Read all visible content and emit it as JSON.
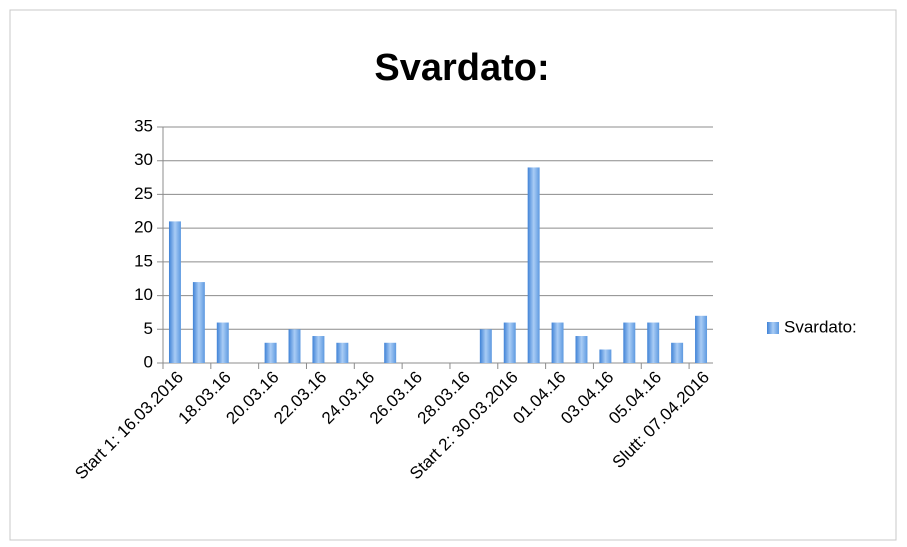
{
  "chart_data": {
    "type": "bar",
    "title": "Svardato:",
    "categories": [
      "Start 1: 16.03.2016",
      null,
      "18.03.16",
      null,
      "20.03.16",
      null,
      "22.03.16",
      null,
      "24.03.16",
      null,
      "26.03.16",
      null,
      "28.03.16",
      null,
      "Start 2: 30.03.2016",
      null,
      "01.04.16",
      null,
      "03.04.16",
      null,
      "05.04.16",
      null,
      "Slutt: 07.04.2016"
    ],
    "series": [
      {
        "name": "Svardato:",
        "color": "#4a8fdb",
        "values": [
          21,
          12,
          6,
          0,
          3,
          5,
          4,
          3,
          0,
          3,
          0,
          0,
          0,
          5,
          6,
          29,
          6,
          4,
          2,
          6,
          6,
          3,
          7
        ]
      }
    ],
    "ylim": [
      0,
      35
    ],
    "yticks": [
      0,
      5,
      10,
      15,
      20,
      25,
      30,
      35
    ],
    "grid": true,
    "legend": "right"
  }
}
